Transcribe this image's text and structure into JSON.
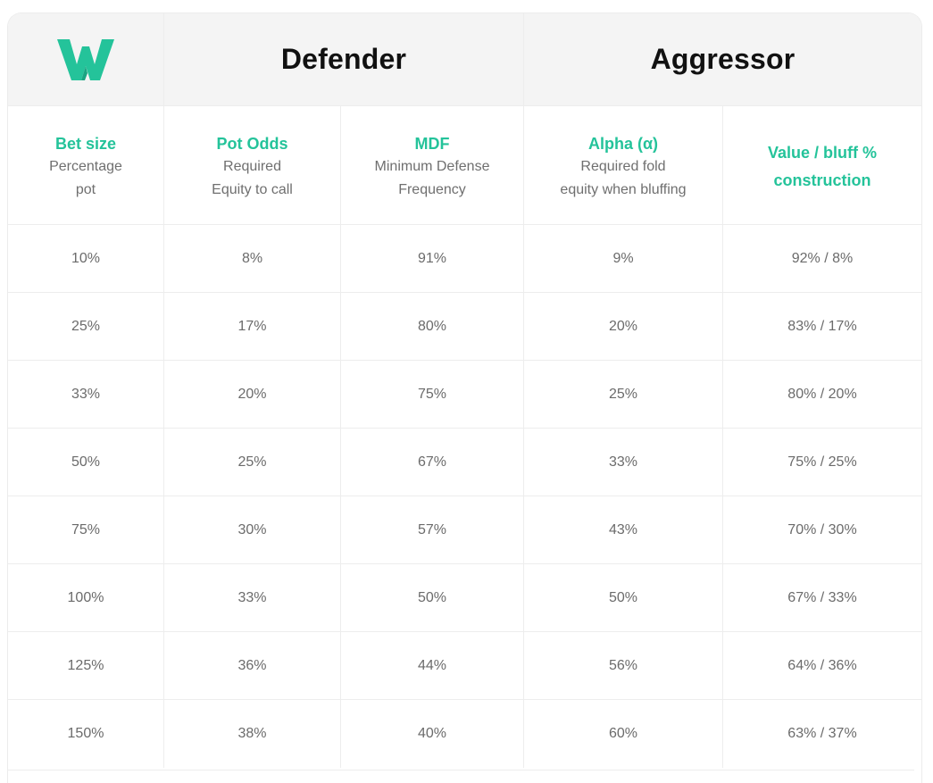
{
  "colors": {
    "accent": "#24c39a",
    "header_bg": "#f4f4f4",
    "text": "#111111",
    "muted": "#6b6b6b"
  },
  "logo": {
    "icon": "w-logo-icon",
    "letter": "W"
  },
  "groups": {
    "defender": "Defender",
    "aggressor": "Aggressor"
  },
  "columns": [
    {
      "title": "Bet size",
      "sub1": "Percentage",
      "sub2": "pot"
    },
    {
      "title": "Pot Odds",
      "sub1": "Required",
      "sub2": "Equity to call"
    },
    {
      "title": "MDF",
      "sub1": "Minimum Defense",
      "sub2": "Frequency"
    },
    {
      "title": "Alpha (α)",
      "sub1": "Required fold",
      "sub2": "equity when bluffing"
    },
    {
      "title1": "Value / bluff %",
      "title2": "construction"
    }
  ],
  "rows": [
    [
      "10%",
      "8%",
      "91%",
      "9%",
      "92% / 8%"
    ],
    [
      "25%",
      "17%",
      "80%",
      "20%",
      "83% / 17%"
    ],
    [
      "33%",
      "20%",
      "75%",
      "25%",
      "80% / 20%"
    ],
    [
      "50%",
      "25%",
      "67%",
      "33%",
      "75% / 25%"
    ],
    [
      "75%",
      "30%",
      "57%",
      "43%",
      "70% / 30%"
    ],
    [
      "100%",
      "33%",
      "50%",
      "50%",
      "67% / 33%"
    ],
    [
      "125%",
      "36%",
      "44%",
      "56%",
      "64% / 36%"
    ],
    [
      "150%",
      "38%",
      "40%",
      "60%",
      "63% / 37%"
    ]
  ]
}
